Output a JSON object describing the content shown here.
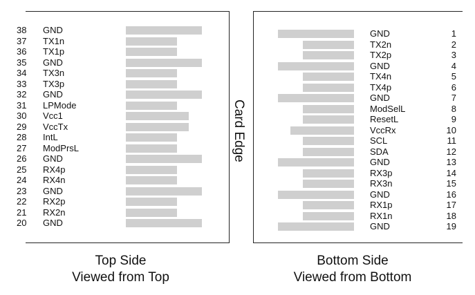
{
  "card_edge_label": "Card Edge",
  "top_side": {
    "caption_line1": "Top Side",
    "caption_line2": "Viewed from Top",
    "pins": [
      {
        "num": "38",
        "signal": "GND",
        "bar": "long"
      },
      {
        "num": "37",
        "signal": "TX1n",
        "bar": "short"
      },
      {
        "num": "36",
        "signal": "TX1p",
        "bar": "short"
      },
      {
        "num": "35",
        "signal": "GND",
        "bar": "long"
      },
      {
        "num": "34",
        "signal": "TX3n",
        "bar": "short"
      },
      {
        "num": "33",
        "signal": "TX3p",
        "bar": "short"
      },
      {
        "num": "32",
        "signal": "GND",
        "bar": "long"
      },
      {
        "num": "31",
        "signal": "LPMode",
        "bar": "short"
      },
      {
        "num": "30",
        "signal": "Vcc1",
        "bar": "medium"
      },
      {
        "num": "29",
        "signal": "VccTx",
        "bar": "medium"
      },
      {
        "num": "28",
        "signal": "IntL",
        "bar": "short"
      },
      {
        "num": "27",
        "signal": "ModPrsL",
        "bar": "short"
      },
      {
        "num": "26",
        "signal": "GND",
        "bar": "long"
      },
      {
        "num": "25",
        "signal": "RX4p",
        "bar": "short"
      },
      {
        "num": "24",
        "signal": "RX4n",
        "bar": "short"
      },
      {
        "num": "23",
        "signal": "GND",
        "bar": "long"
      },
      {
        "num": "22",
        "signal": "RX2p",
        "bar": "short"
      },
      {
        "num": "21",
        "signal": "RX2n",
        "bar": "short"
      },
      {
        "num": "20",
        "signal": "GND",
        "bar": "long"
      }
    ]
  },
  "bottom_side": {
    "caption_line1": "Bottom Side",
    "caption_line2": "Viewed from Bottom",
    "pins": [
      {
        "num": "1",
        "signal": "GND",
        "bar": "long"
      },
      {
        "num": "2",
        "signal": "TX2n",
        "bar": "short"
      },
      {
        "num": "3",
        "signal": "TX2p",
        "bar": "short"
      },
      {
        "num": "4",
        "signal": "GND",
        "bar": "long"
      },
      {
        "num": "5",
        "signal": "TX4n",
        "bar": "short"
      },
      {
        "num": "6",
        "signal": "TX4p",
        "bar": "short"
      },
      {
        "num": "7",
        "signal": "GND",
        "bar": "long"
      },
      {
        "num": "8",
        "signal": "ModSelL",
        "bar": "short"
      },
      {
        "num": "9",
        "signal": "ResetL",
        "bar": "short"
      },
      {
        "num": "10",
        "signal": "VccRx",
        "bar": "medium"
      },
      {
        "num": "11",
        "signal": "SCL",
        "bar": "short"
      },
      {
        "num": "12",
        "signal": "SDA",
        "bar": "short"
      },
      {
        "num": "13",
        "signal": "GND",
        "bar": "long"
      },
      {
        "num": "14",
        "signal": "RX3p",
        "bar": "short"
      },
      {
        "num": "15",
        "signal": "RX3n",
        "bar": "short"
      },
      {
        "num": "16",
        "signal": "GND",
        "bar": "long"
      },
      {
        "num": "17",
        "signal": "RX1p",
        "bar": "short"
      },
      {
        "num": "18",
        "signal": "RX1n",
        "bar": "short"
      },
      {
        "num": "19",
        "signal": "GND",
        "bar": "long"
      }
    ]
  },
  "colors": {
    "pad": "#cfcfcf",
    "line": "#222222"
  }
}
